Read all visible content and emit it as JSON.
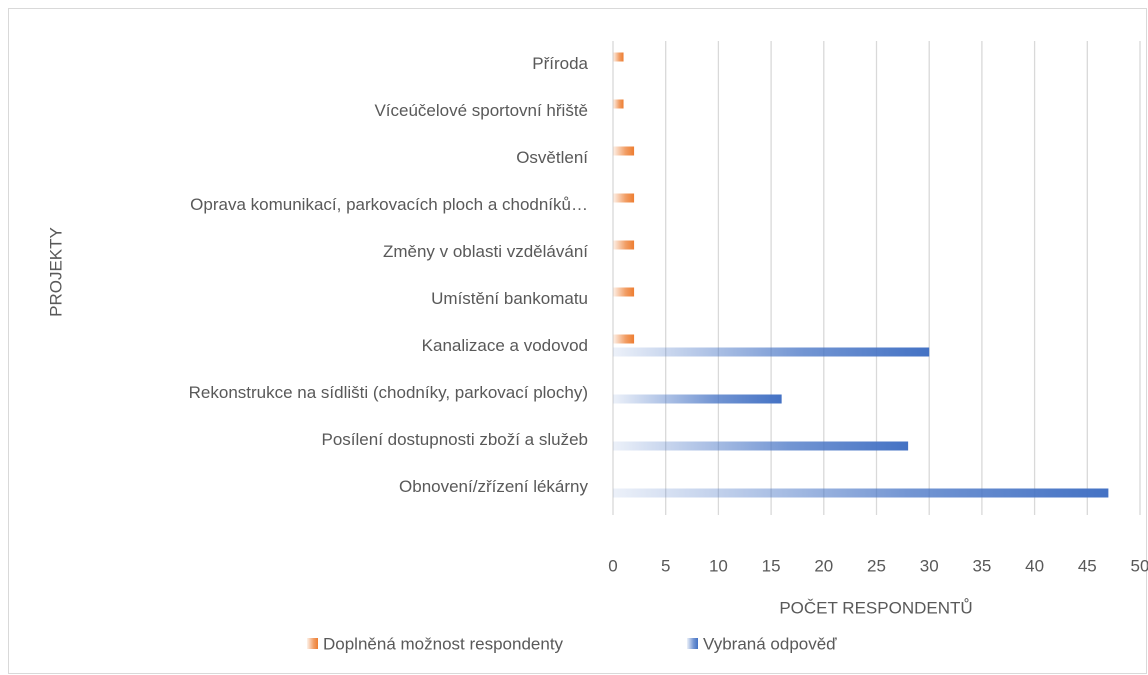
{
  "chart_data": {
    "type": "hbar",
    "categories": [
      "Příroda",
      "Víceúčelové sportovní hřiště",
      "Osvětlení",
      "Oprava komunikací, parkovacích ploch a chodníků…",
      "Změny v oblasti vzdělávání",
      "Umístění bankomatu",
      "Kanalizace a vodovod",
      "Rekonstrukce na sídlišti (chodníky, parkovací plochy)",
      "Posílení dostupnosti zboží a služeb",
      "Obnovení/zřízení lékárny"
    ],
    "series": [
      {
        "name": "Doplněná možnost respondenty",
        "color": "#ed7d31",
        "values": [
          1,
          1,
          2,
          2,
          2,
          2,
          2,
          null,
          null,
          null
        ]
      },
      {
        "name": "Vybraná odpověď",
        "color": "#4472c4",
        "values": [
          null,
          null,
          null,
          null,
          null,
          null,
          30,
          16,
          28,
          47
        ]
      }
    ],
    "xlabel": "POČET RESPONDENTŮ",
    "ylabel": "PROJEKTY",
    "xlim": [
      0,
      50
    ],
    "xticks": [
      0,
      5,
      10,
      15,
      20,
      25,
      30,
      35,
      40,
      45,
      50
    ],
    "grid": true,
    "legend": "bottom"
  }
}
